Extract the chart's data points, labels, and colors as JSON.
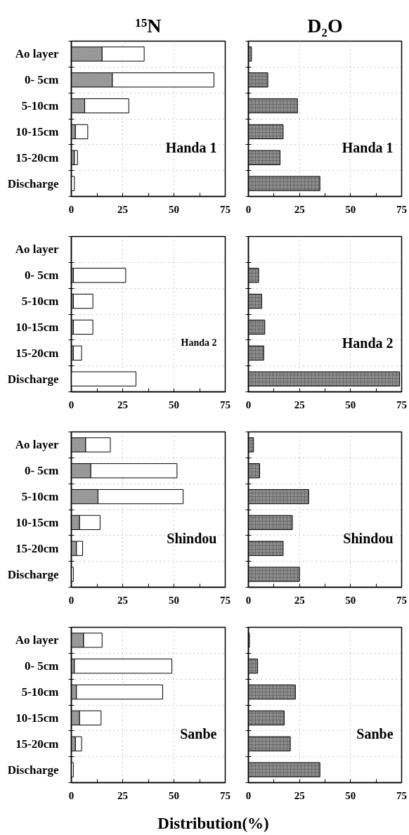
{
  "chart_data": [
    {
      "type": "bar",
      "orientation": "horizontal",
      "stacked": true,
      "title": "¹⁵N",
      "categories": [
        "Ao layer",
        "0- 5cm",
        "5-10cm",
        "10-15cm",
        "15-20cm",
        "Discharge"
      ],
      "series": [
        {
          "color": "#a8a8a8",
          "values": [
            15,
            20,
            6.5,
            2,
            1.5,
            null
          ]
        },
        {
          "color": "#ffffff",
          "values": [
            20.5,
            49.5,
            21.5,
            6,
            1.5,
            1.5
          ]
        }
      ],
      "xlim": [
        0,
        75
      ],
      "xticks": [
        0,
        {
          "value": 12.5,
          "label": null
        },
        25,
        {
          "value": 37.5,
          "label": null
        },
        50,
        {
          "value": 62.5,
          "label": null
        },
        75
      ],
      "grid": true,
      "annotations": [
        "Handa 1"
      ]
    },
    {
      "type": "bar",
      "orientation": "horizontal",
      "title": "D₂O",
      "categories": [
        null,
        null,
        null,
        null,
        null,
        null
      ],
      "color": "#8c8c8c",
      "values": [
        1.5,
        9.5,
        24,
        17,
        15.5,
        35
      ],
      "xlim": [
        0,
        75
      ],
      "xticks": [
        0,
        {
          "value": 12.5,
          "label": null
        },
        25,
        {
          "value": 37.5,
          "label": null
        },
        50,
        {
          "value": 62.5,
          "label": null
        },
        75
      ],
      "grid": true,
      "annotations": [
        "Handa 1"
      ]
    },
    {
      "type": "bar",
      "orientation": "horizontal",
      "stacked": true,
      "categories": [
        "Ao layer",
        "0- 5cm",
        "5-10cm",
        "10-15cm",
        "15-20cm",
        "Discharge"
      ],
      "series": [
        {
          "color": "#a8a8a8",
          "values": [
            null,
            1,
            1,
            1,
            1,
            null
          ]
        },
        {
          "color": "#ffffff",
          "values": [
            null,
            25.5,
            9.5,
            9.5,
            4,
            31.5
          ]
        }
      ],
      "xlim": [
        0,
        75
      ],
      "xticks": [
        0,
        {
          "value": 12.5,
          "label": null
        },
        25,
        {
          "value": 37.5,
          "label": null
        },
        50,
        {
          "value": 62.5,
          "label": null
        },
        75
      ],
      "grid": true,
      "annotations": [
        "Handa 2"
      ]
    },
    {
      "type": "bar",
      "orientation": "horizontal",
      "categories": [
        null,
        null,
        null,
        null,
        null,
        null
      ],
      "color": "#8c8c8c",
      "values": [
        null,
        5,
        6.5,
        8,
        7.5,
        74
      ],
      "xlim": [
        0,
        75
      ],
      "xticks": [
        0,
        {
          "value": 12.5,
          "label": null
        },
        25,
        {
          "value": 37.5,
          "label": null
        },
        50,
        {
          "value": 62.5,
          "label": null
        },
        75
      ],
      "grid": true,
      "annotations": [
        "Handa 2"
      ]
    },
    {
      "type": "bar",
      "orientation": "horizontal",
      "stacked": true,
      "categories": [
        "Ao layer",
        "0- 5cm",
        "5-10cm",
        "10-15cm",
        "15-20cm",
        "Discharge"
      ],
      "series": [
        {
          "color": "#a8a8a8",
          "values": [
            7,
            9.5,
            13,
            4,
            2.5,
            null
          ]
        },
        {
          "color": "#ffffff",
          "values": [
            12,
            42,
            41.5,
            10,
            3,
            1
          ]
        }
      ],
      "xlim": [
        0,
        75
      ],
      "xticks": [
        0,
        {
          "value": 12.5,
          "label": null
        },
        25,
        {
          "value": 37.5,
          "label": null
        },
        50,
        {
          "value": 62.5,
          "label": null
        },
        75
      ],
      "grid": true,
      "annotations": [
        "Shindou"
      ]
    },
    {
      "type": "bar",
      "orientation": "horizontal",
      "categories": [
        null,
        null,
        null,
        null,
        null,
        null
      ],
      "color": "#8c8c8c",
      "values": [
        2.5,
        5.5,
        29.5,
        21.5,
        17,
        25
      ],
      "xlim": [
        0,
        75
      ],
      "xticks": [
        0,
        {
          "value": 12.5,
          "label": null
        },
        25,
        {
          "value": 37.5,
          "label": null
        },
        50,
        {
          "value": 62.5,
          "label": null
        },
        75
      ],
      "grid": true,
      "annotations": [
        "Shindou"
      ]
    },
    {
      "type": "bar",
      "orientation": "horizontal",
      "stacked": true,
      "xlabel": "Distribution(%)",
      "categories": [
        "Ao layer",
        "0- 5cm",
        "5-10cm",
        "10-15cm",
        "15-20cm",
        "Discharge"
      ],
      "series": [
        {
          "color": "#a8a8a8",
          "values": [
            6,
            1.5,
            2.5,
            4,
            2,
            null
          ]
        },
        {
          "color": "#ffffff",
          "values": [
            9,
            47.5,
            42,
            10.5,
            3,
            1
          ]
        }
      ],
      "xlim": [
        0,
        75
      ],
      "xticks": [
        0,
        {
          "value": 12.5,
          "label": null
        },
        25,
        {
          "value": 37.5,
          "label": null
        },
        50,
        {
          "value": 62.5,
          "label": null
        },
        75
      ],
      "grid": true,
      "annotations": [
        "Sanbe"
      ]
    },
    {
      "type": "bar",
      "orientation": "horizontal",
      "categories": [
        null,
        null,
        null,
        null,
        null,
        null
      ],
      "color": "#8c8c8c",
      "values": [
        0.5,
        4.5,
        23,
        17.5,
        20.5,
        35
      ],
      "xlim": [
        0,
        75
      ],
      "xticks": [
        0,
        {
          "value": 12.5,
          "label": null
        },
        25,
        {
          "value": 37.5,
          "label": null
        },
        50,
        {
          "value": 62.5,
          "label": null
        },
        75
      ],
      "grid": true,
      "annotations": [
        "Sanbe"
      ]
    }
  ]
}
